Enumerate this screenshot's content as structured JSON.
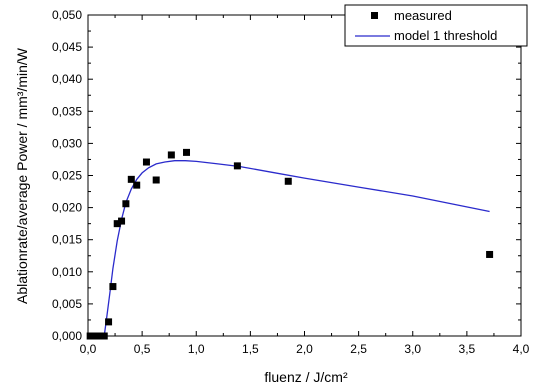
{
  "chart_data": {
    "type": "scatter",
    "xlabel": "fluenz / J/cm²",
    "ylabel": "Ablationrate/average Power / mm³/min/W",
    "xlim": [
      0.0,
      4.0
    ],
    "ylim": [
      0.0,
      0.05
    ],
    "x_ticks": [
      "0,0",
      "0,5",
      "1,0",
      "1,5",
      "2,0",
      "2,5",
      "3,0",
      "3,5",
      "4,0"
    ],
    "y_ticks": [
      "0,000",
      "0,005",
      "0,010",
      "0,015",
      "0,020",
      "0,025",
      "0,030",
      "0,035",
      "0,040",
      "0,045",
      "0,050"
    ],
    "grid": false,
    "legend_position": "top-right",
    "series": [
      {
        "name": "measured",
        "marker": "square",
        "color": "#000000",
        "x": [
          0.02,
          0.05,
          0.08,
          0.11,
          0.15,
          0.19,
          0.23,
          0.27,
          0.31,
          0.35,
          0.4,
          0.45,
          0.54,
          0.63,
          0.77,
          0.91,
          1.38,
          1.85,
          3.71
        ],
        "y": [
          0.0,
          0.0,
          0.0,
          0.0,
          0.0,
          0.0022,
          0.0077,
          0.0175,
          0.0179,
          0.0206,
          0.0244,
          0.0235,
          0.0271,
          0.0243,
          0.0282,
          0.0286,
          0.0265,
          0.0241,
          0.0127
        ]
      },
      {
        "name": "model 1 threshold",
        "type": "line",
        "color": "#2b2bcc",
        "x": [
          0.15,
          0.17,
          0.2,
          0.23,
          0.27,
          0.31,
          0.35,
          0.4,
          0.45,
          0.5,
          0.56,
          0.63,
          0.71,
          0.8,
          0.9,
          1.0,
          1.2,
          1.4,
          1.7,
          2.0,
          2.5,
          3.0,
          3.71
        ],
        "y": [
          0.0,
          0.0025,
          0.0065,
          0.0105,
          0.0148,
          0.0182,
          0.0208,
          0.0229,
          0.0244,
          0.0254,
          0.0262,
          0.0268,
          0.0271,
          0.0273,
          0.0273,
          0.0272,
          0.0268,
          0.0264,
          0.0255,
          0.0246,
          0.0232,
          0.0218,
          0.0194
        ]
      }
    ]
  }
}
